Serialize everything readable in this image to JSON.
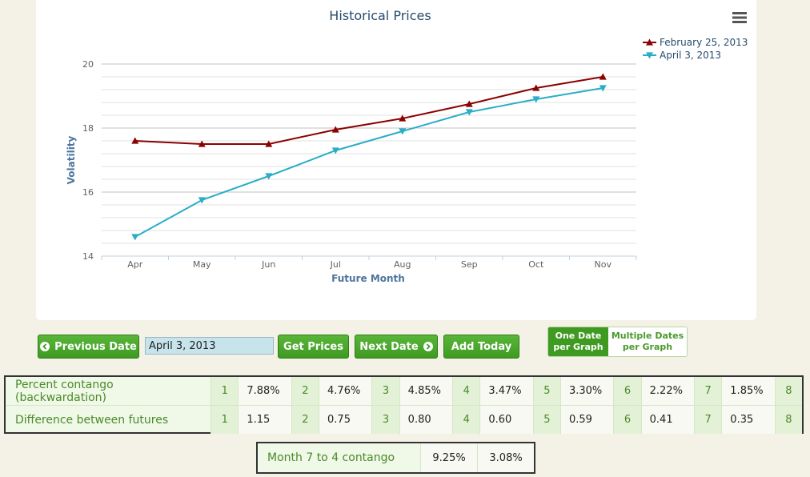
{
  "chart_data": {
    "type": "line",
    "title": "Historical Prices",
    "xlabel": "Future Month",
    "ylabel": "Volatility",
    "categories": [
      "Apr",
      "May",
      "Jun",
      "Jul",
      "Aug",
      "Sep",
      "Oct",
      "Nov"
    ],
    "ylim": [
      14,
      20
    ],
    "yticks": [
      14,
      16,
      18,
      20
    ],
    "grid": true,
    "legend_position": "top-right",
    "series": [
      {
        "name": "February 25, 2013",
        "color": "#8b0000",
        "marker": "triangle-up",
        "values": [
          17.6,
          17.5,
          17.5,
          17.95,
          18.3,
          18.75,
          19.25,
          19.6
        ]
      },
      {
        "name": "April 3, 2013",
        "color": "#2aaec7",
        "marker": "triangle-down",
        "values": [
          14.6,
          15.75,
          16.5,
          17.3,
          17.9,
          18.5,
          18.9,
          19.25
        ]
      }
    ]
  },
  "menu_icon": "hamburger-menu-icon",
  "controls": {
    "prev_label": "Previous Date",
    "date_value": "April 3, 2013",
    "get_label": "Get Prices",
    "next_label": "Next Date",
    "add_label": "Add Today",
    "toggle_one": "One Date per Graph",
    "toggle_multi": "Multiple Dates per Graph"
  },
  "stats": {
    "rows": [
      {
        "label": "Percent contango (backwardation)",
        "cells": [
          [
            "1",
            "7.88%"
          ],
          [
            "2",
            "4.76%"
          ],
          [
            "3",
            "4.85%"
          ],
          [
            "4",
            "3.47%"
          ],
          [
            "5",
            "3.30%"
          ],
          [
            "6",
            "2.22%"
          ],
          [
            "7",
            "1.85%"
          ],
          [
            "8",
            ""
          ]
        ]
      },
      {
        "label": "Difference between futures",
        "cells": [
          [
            "1",
            "1.15"
          ],
          [
            "2",
            "0.75"
          ],
          [
            "3",
            "0.80"
          ],
          [
            "4",
            "0.60"
          ],
          [
            "5",
            "0.59"
          ],
          [
            "6",
            "0.41"
          ],
          [
            "7",
            "0.35"
          ],
          [
            "8",
            ""
          ]
        ]
      }
    ]
  },
  "summary": {
    "label": "Month 7 to 4 contango",
    "values": [
      "9.25%",
      "3.08%"
    ]
  },
  "colors": {
    "accent_green": "#3f9a22",
    "background": "#f4f1e6"
  }
}
